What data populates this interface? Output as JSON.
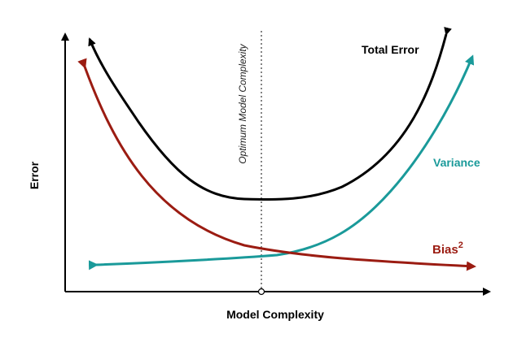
{
  "axes": {
    "x_label": "Model Complexity",
    "y_label": "Error"
  },
  "annotation": {
    "optimum_label": "Optimum Model Complexity"
  },
  "curves": {
    "total_error": {
      "label": "Total Error",
      "color": "#000000"
    },
    "variance": {
      "label": "Variance",
      "color": "#1a9a9a"
    },
    "bias": {
      "label": "Bias",
      "superscript": "2",
      "color": "#9b1c12"
    }
  }
}
